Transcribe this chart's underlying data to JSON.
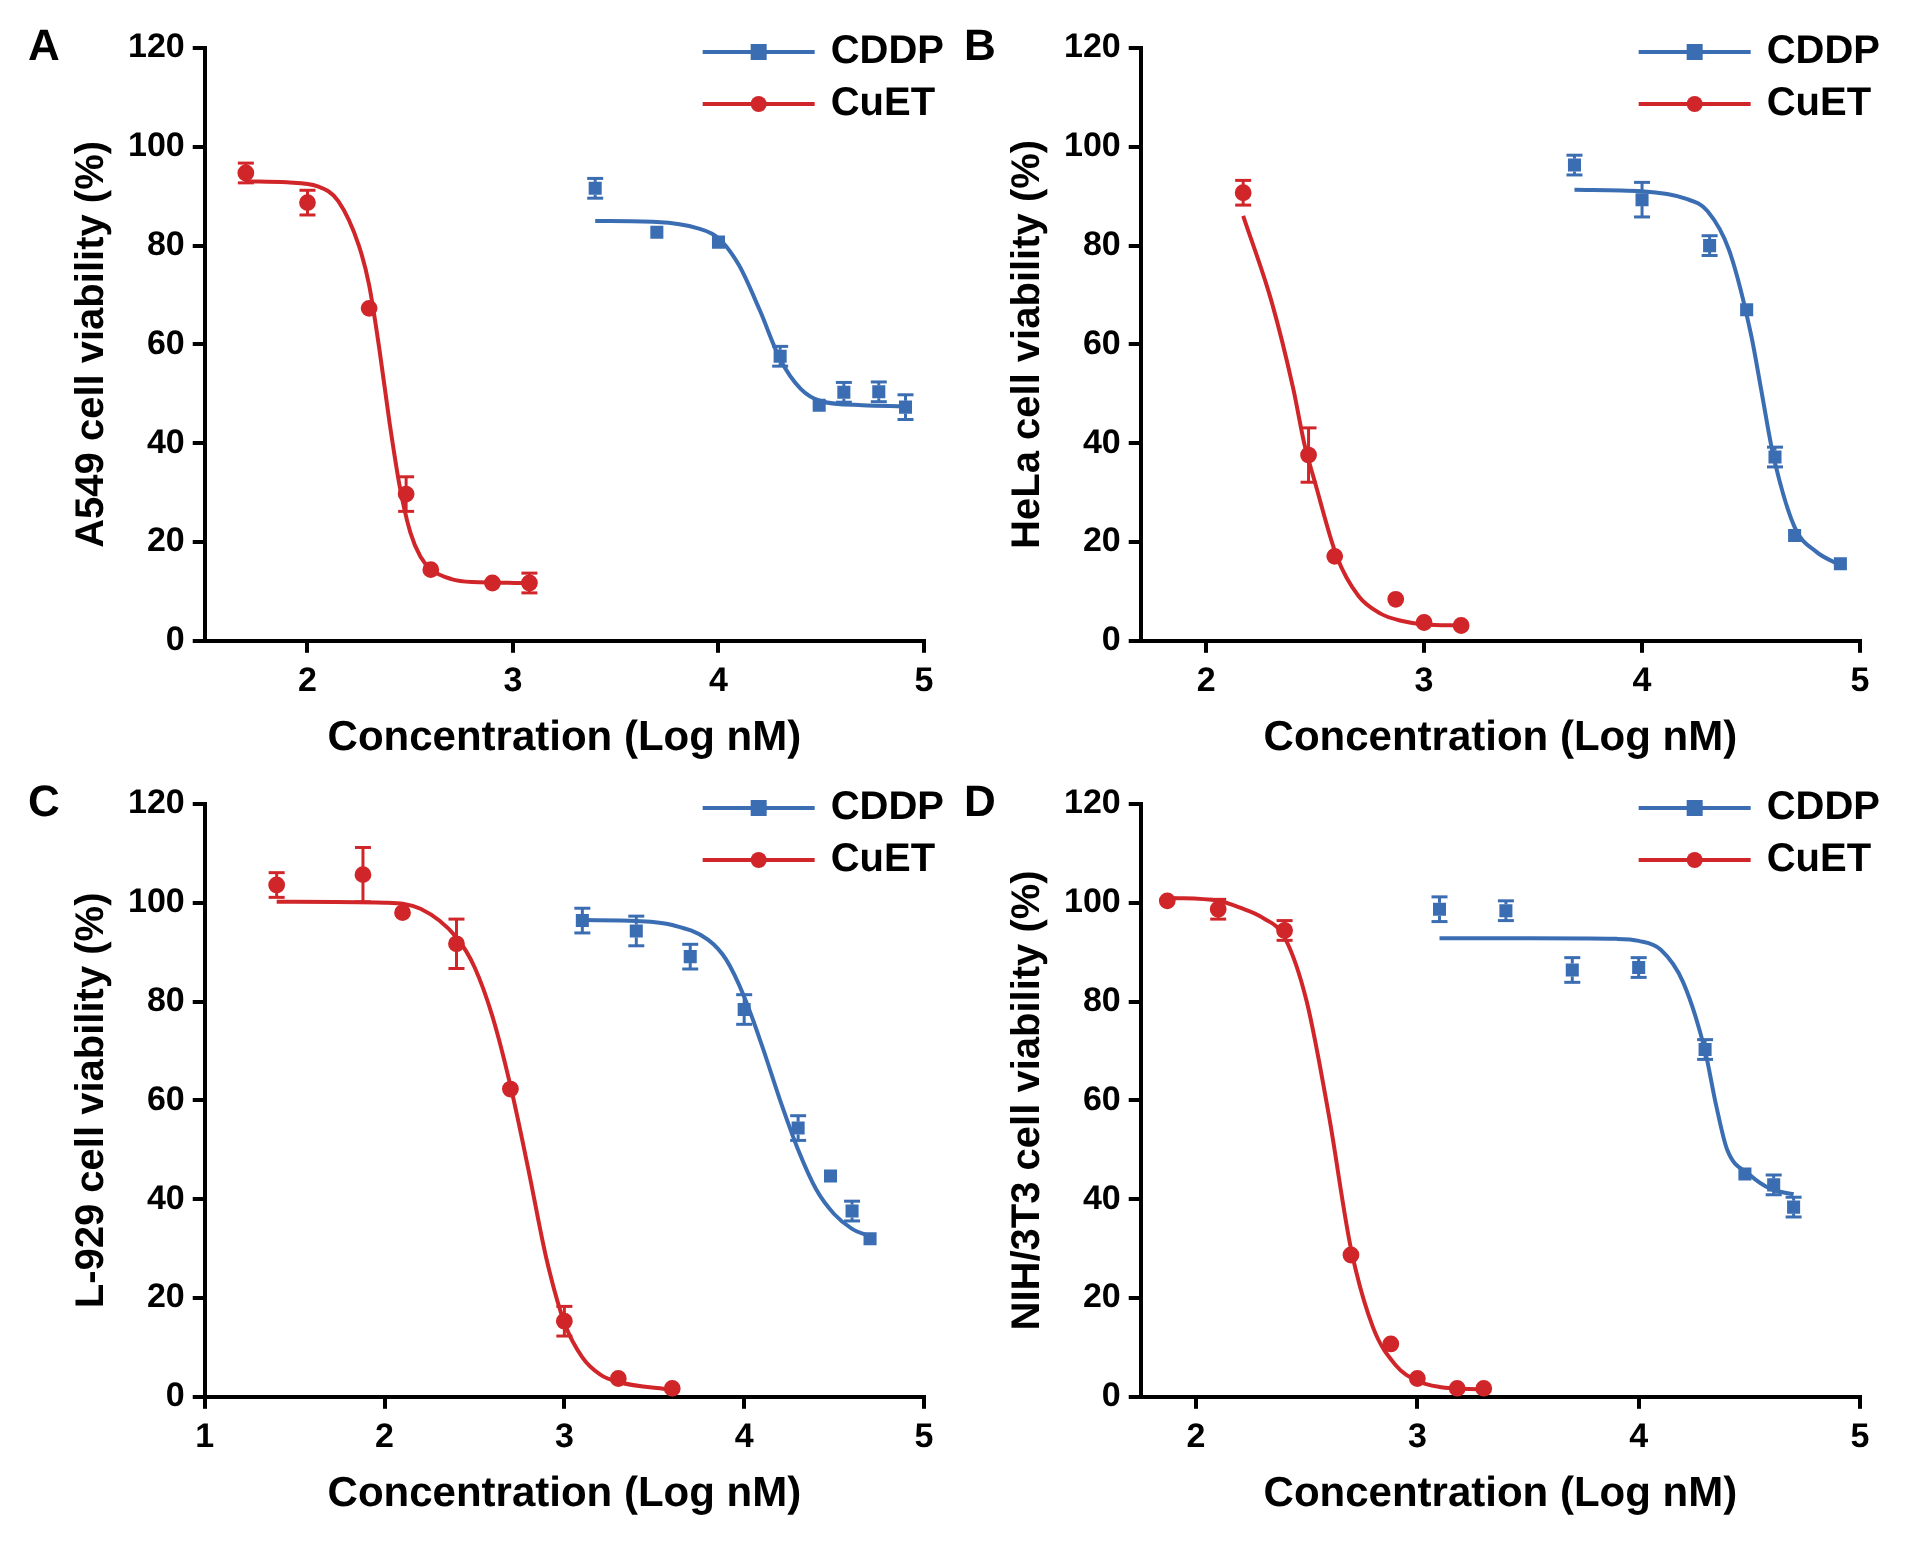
{
  "chart_data": [
    {
      "type": "scatter",
      "annotations": [
        "A"
      ],
      "xlabel": "Concentration (Log nM)",
      "ylabel": "A549 cell viability (%)",
      "xlim": [
        1.5,
        5
      ],
      "xticks": [
        2,
        3,
        4,
        5
      ],
      "ylim": [
        0,
        120
      ],
      "yticks": [
        0,
        20,
        40,
        60,
        80,
        100,
        120
      ],
      "legend": "top right",
      "grid": false,
      "series": [
        {
          "name": "CDDP",
          "type": "scatter",
          "marker": "square",
          "color": "#3b6db3",
          "x": [
            3.4,
            3.7,
            4.0,
            4.3,
            4.49,
            4.61,
            4.78,
            4.91
          ],
          "values": [
            91.6,
            82.7,
            80.7,
            57.6,
            47.7,
            50.3,
            50.4,
            47.3
          ],
          "errors": [
            2,
            null,
            null,
            2,
            null,
            2,
            2,
            2.5
          ]
        },
        {
          "name": "CuET",
          "type": "scatter",
          "marker": "circle",
          "color": "#d0262a",
          "x": [
            1.7,
            2.0,
            2.3,
            2.48,
            2.6,
            2.9,
            3.08
          ],
          "values": [
            94.7,
            88.7,
            67.3,
            29.7,
            14.4,
            11.7,
            11.7
          ],
          "errors": [
            2,
            2.5,
            null,
            3.5,
            null,
            null,
            2
          ]
        },
        {
          "type": "line",
          "marker": "none",
          "color": "#3b6db3",
          "x": [
            3.4,
            3.7,
            3.9,
            4.0,
            4.1,
            4.2,
            4.3,
            4.4,
            4.5,
            4.7,
            4.9
          ],
          "values": [
            85,
            84.8,
            83.5,
            81.5,
            76,
            67,
            57,
            51,
            48.5,
            47.7,
            47.5
          ]
        },
        {
          "type": "line",
          "marker": "none",
          "color": "#d0262a",
          "x": [
            1.7,
            1.9,
            2.05,
            2.15,
            2.25,
            2.3,
            2.35,
            2.4,
            2.45,
            2.5,
            2.55,
            2.6,
            2.7,
            2.8,
            3.08
          ],
          "values": [
            93,
            92.8,
            92,
            89,
            80,
            72,
            59,
            44,
            31,
            22,
            17,
            14.5,
            12.5,
            11.9,
            11.7
          ]
        }
      ]
    },
    {
      "type": "scatter",
      "annotations": [
        "B"
      ],
      "xlabel": "Concentration (Log nM)",
      "ylabel": "HeLa cell viability (%)",
      "xlim": [
        1.7,
        5
      ],
      "xticks": [
        2,
        3,
        4,
        5
      ],
      "ylim": [
        0,
        120
      ],
      "yticks": [
        0,
        20,
        40,
        60,
        80,
        100,
        120
      ],
      "legend": "top right",
      "grid": false,
      "series": [
        {
          "name": "CDDP",
          "type": "scatter",
          "marker": "square",
          "color": "#3b6db3",
          "x": [
            3.69,
            4.0,
            4.31,
            4.48,
            4.61,
            4.7,
            4.91
          ],
          "values": [
            96.3,
            89.3,
            80,
            67,
            37.2,
            21.3,
            15.6
          ],
          "errors": [
            2,
            3.5,
            2,
            null,
            2,
            null,
            null
          ]
        },
        {
          "name": "CuET",
          "type": "scatter",
          "marker": "circle",
          "color": "#d0262a",
          "x": [
            2.17,
            2.47,
            2.59,
            2.87,
            3.0,
            3.17
          ],
          "values": [
            90.7,
            37.6,
            17.1,
            8.4,
            3.7,
            3.1
          ],
          "errors": [
            2.5,
            5.5,
            null,
            null,
            null,
            null
          ]
        },
        {
          "type": "line",
          "marker": "none",
          "color": "#3b6db3",
          "x": [
            3.69,
            4.0,
            4.2,
            4.3,
            4.4,
            4.5,
            4.55,
            4.6,
            4.7,
            4.8,
            4.9
          ],
          "values": [
            91.3,
            91,
            89.5,
            87,
            79,
            62,
            50,
            38,
            23,
            18,
            15.5
          ]
        },
        {
          "type": "line",
          "marker": "none",
          "color": "#d0262a",
          "x": [
            2.17,
            2.3,
            2.4,
            2.45,
            2.5,
            2.6,
            2.7,
            2.8,
            2.9,
            3.0,
            3.17
          ],
          "values": [
            86,
            68.7,
            51,
            40,
            32,
            17,
            9,
            5.5,
            4,
            3.3,
            3.1
          ]
        }
      ]
    },
    {
      "type": "scatter",
      "annotations": [
        "C"
      ],
      "xlabel": "Concentration (Log nM)",
      "ylabel": "L-929 cell viability (%)",
      "xlim": [
        1,
        5
      ],
      "xticks": [
        1,
        2,
        3,
        4,
        5
      ],
      "ylim": [
        0,
        120
      ],
      "yticks": [
        0,
        20,
        40,
        60,
        80,
        100,
        120
      ],
      "legend": "top right",
      "grid": false,
      "series": [
        {
          "name": "CDDP",
          "type": "scatter",
          "marker": "square",
          "color": "#3b6db3",
          "x": [
            3.1,
            3.4,
            3.7,
            4.0,
            4.3,
            4.48,
            4.6,
            4.7
          ],
          "values": [
            96.4,
            94.3,
            89.1,
            78.4,
            54.4,
            44.7,
            37.6,
            32
          ],
          "errors": [
            2.5,
            3,
            2.5,
            3,
            2.5,
            null,
            2,
            null
          ]
        },
        {
          "name": "CuET",
          "type": "scatter",
          "marker": "circle",
          "color": "#d0262a",
          "x": [
            1.4,
            1.88,
            2.1,
            2.4,
            2.7,
            3.0,
            3.3,
            3.6
          ],
          "values": [
            103.6,
            105.7,
            98,
            91.7,
            62.3,
            15.3,
            3.7,
            1.7
          ],
          "errors": [
            2.5,
            5.5,
            null,
            5,
            null,
            3,
            null,
            null
          ]
        },
        {
          "type": "line",
          "marker": "none",
          "color": "#3b6db3",
          "x": [
            3.1,
            3.4,
            3.6,
            3.8,
            3.9,
            4.0,
            4.1,
            4.2,
            4.3,
            4.4,
            4.5,
            4.6,
            4.7
          ],
          "values": [
            96.5,
            96.3,
            95.5,
            92.5,
            88.5,
            81,
            71,
            60,
            50,
            42,
            37,
            34,
            32.5
          ]
        },
        {
          "type": "line",
          "marker": "none",
          "color": "#d0262a",
          "x": [
            1.4,
            2.0,
            2.2,
            2.4,
            2.5,
            2.6,
            2.7,
            2.8,
            2.9,
            3.0,
            3.1,
            3.2,
            3.3,
            3.6
          ],
          "values": [
            100.2,
            100,
            98.8,
            93,
            87,
            77,
            63,
            46,
            28,
            15,
            8,
            4.5,
            3,
            1.4
          ]
        }
      ]
    },
    {
      "type": "scatter",
      "annotations": [
        "D"
      ],
      "xlabel": "Concentration (Log nM)",
      "ylabel": "NIH/3T3 cell viability (%)",
      "xlim": [
        1.75,
        5
      ],
      "xticks": [
        2,
        3,
        4,
        5
      ],
      "ylim": [
        0,
        120
      ],
      "yticks": [
        0,
        20,
        40,
        60,
        80,
        100,
        120
      ],
      "legend": "top right",
      "grid": false,
      "series": [
        {
          "name": "CDDP",
          "type": "scatter",
          "marker": "square",
          "color": "#3b6db3",
          "x": [
            3.1,
            3.4,
            3.7,
            4.0,
            4.3,
            4.48,
            4.61,
            4.7
          ],
          "values": [
            98.7,
            98.4,
            86.4,
            86.9,
            70.3,
            45.1,
            42.9,
            38.4
          ],
          "errors": [
            2.5,
            2,
            2.5,
            2,
            2,
            null,
            2,
            2
          ]
        },
        {
          "name": "CuET",
          "type": "scatter",
          "marker": "circle",
          "color": "#d0262a",
          "x": [
            1.87,
            2.1,
            2.4,
            2.7,
            2.88,
            3.0,
            3.18,
            3.3
          ],
          "values": [
            100.4,
            98.7,
            94.4,
            28.7,
            10.7,
            3.7,
            1.7,
            1.7
          ],
          "errors": [
            null,
            2,
            2,
            null,
            null,
            null,
            null,
            null
          ]
        },
        {
          "type": "line",
          "marker": "none",
          "color": "#3b6db3",
          "x": [
            3.1,
            3.5,
            3.9,
            4.0,
            4.1,
            4.2,
            4.3,
            4.35,
            4.4,
            4.5,
            4.6,
            4.7
          ],
          "values": [
            92.8,
            92.8,
            92.7,
            92.3,
            90.5,
            84,
            70,
            59,
            50,
            45,
            42,
            41
          ]
        },
        {
          "type": "line",
          "marker": "none",
          "color": "#d0262a",
          "x": [
            1.87,
            2.1,
            2.2,
            2.3,
            2.4,
            2.5,
            2.6,
            2.7,
            2.8,
            2.9,
            3.0,
            3.1,
            3.3
          ],
          "values": [
            101,
            100.4,
            99,
            97,
            93,
            80,
            57,
            30,
            14,
            6.5,
            3.2,
            2,
            1.5
          ]
        }
      ]
    }
  ]
}
